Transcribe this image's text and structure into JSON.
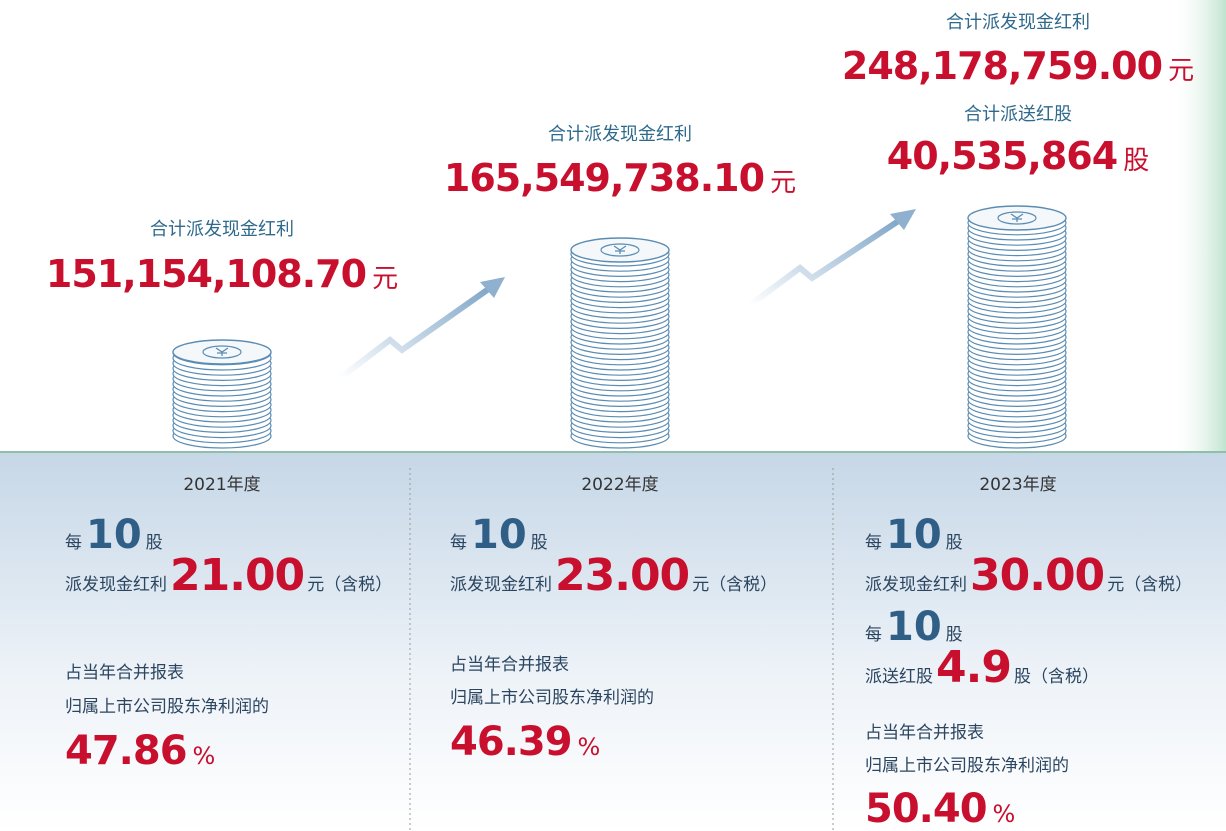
{
  "years": [
    {
      "total_label": "合计派发现金红利",
      "total": "151,154,108.70",
      "total_unit": "元",
      "year": "2021年度",
      "per": "每",
      "per_num": "10",
      "per_unit": "股",
      "cash_label": "派发现金红利",
      "cash": "21.00",
      "cash_unit": "元（含税）",
      "ratio_label_1": "占当年合并报表",
      "ratio_label_2": "归属上市公司股东净利润的",
      "ratio": "47.86",
      "ratio_unit": "%"
    },
    {
      "total_label": "合计派发现金红利",
      "total": "165,549,738.10",
      "total_unit": "元",
      "year": "2022年度",
      "per": "每",
      "per_num": "10",
      "per_unit": "股",
      "cash_label": "派发现金红利",
      "cash": "23.00",
      "cash_unit": "元（含税）",
      "ratio_label_1": "占当年合并报表",
      "ratio_label_2": "归属上市公司股东净利润的",
      "ratio": "46.39",
      "ratio_unit": "%"
    },
    {
      "total_label": "合计派发现金红利",
      "total": "248,178,759.00",
      "total_unit": "元",
      "share_label": "合计派送红股",
      "shares": "40,535,864",
      "shares_unit": "股",
      "year": "2023年度",
      "per": "每",
      "per_num": "10",
      "per_unit": "股",
      "cash_label": "派发现金红利",
      "cash": "30.00",
      "cash_unit": "元（含税）",
      "bonus_per": "每",
      "bonus_per_num": "10",
      "bonus_per_unit": "股",
      "bonus_label": "派送红股",
      "bonus": "4.9",
      "bonus_unit": "股（含税）",
      "ratio_label_1": "占当年合并报表",
      "ratio_label_2": "归属上市公司股东净利润的",
      "ratio": "50.40",
      "ratio_unit": "%"
    }
  ]
}
